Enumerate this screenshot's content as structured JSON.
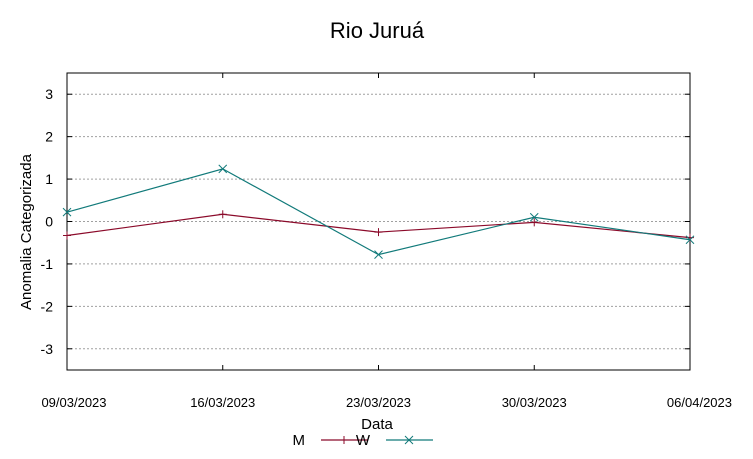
{
  "chart_data": {
    "type": "line",
    "title": "Rio Juruá",
    "xlabel": "Data",
    "ylabel": "Anomalia Categorizada",
    "categories": [
      "09/03/2023",
      "16/03/2023",
      "23/03/2023",
      "30/03/2023",
      "06/04/2023"
    ],
    "ylim": [
      -3.5,
      3.5
    ],
    "yticks": [
      3,
      2,
      1,
      0,
      -1,
      -2,
      -3
    ],
    "grid": true,
    "legend_position": "bottom-center",
    "series": [
      {
        "name": "M",
        "color": "#8b0a2a",
        "marker": "plus",
        "values": [
          -0.33,
          0.17,
          -0.25,
          -0.02,
          -0.38
        ]
      },
      {
        "name": "W",
        "color": "#117a7a",
        "marker": "x",
        "values": [
          0.22,
          1.24,
          -0.78,
          0.1,
          -0.43
        ]
      }
    ]
  }
}
